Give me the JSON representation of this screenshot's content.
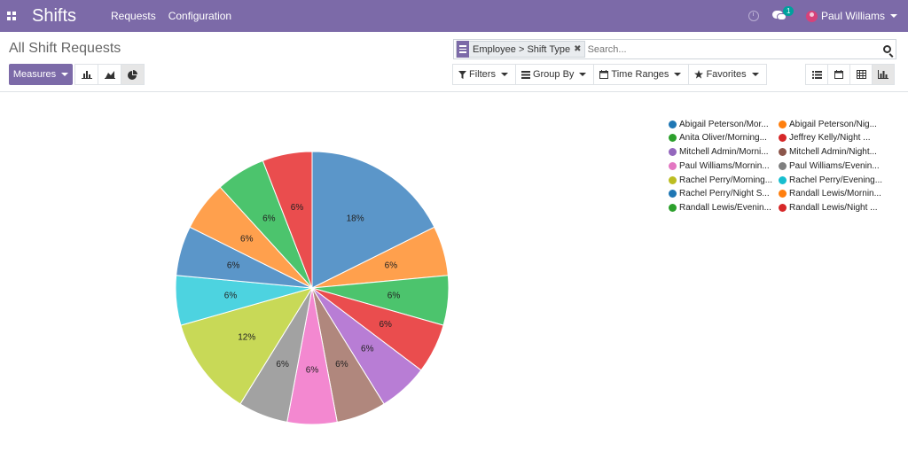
{
  "navbar": {
    "app_name": "Shifts",
    "menu": [
      "Requests",
      "Configuration"
    ],
    "chat_count": "1",
    "user_name": "Paul Williams",
    "brand_color": "#7c6aa8"
  },
  "control_panel": {
    "title": "All Shift Requests",
    "facet": "Employee > Shift Type",
    "search_placeholder": "Search...",
    "measures_label": "Measures",
    "filters": [
      "Filters",
      "Group By",
      "Time Ranges",
      "Favorites"
    ],
    "chart_type_icons": [
      "bar-chart-icon",
      "line-chart-icon",
      "pie-chart-icon"
    ],
    "active_chart_type": "pie",
    "view_icons": [
      "list-view-icon",
      "calendar-view-icon",
      "pivot-view-icon",
      "graph-view-icon"
    ],
    "active_view": "graph"
  },
  "chart_data": {
    "type": "pie",
    "start_angle_deg": 0,
    "direction": "clockwise",
    "slices": [
      {
        "label": "Abigail Peterson/Mor...",
        "value": 18,
        "display": "18%",
        "color": "#5b96c9",
        "legend_color": "#1f77b4"
      },
      {
        "label": "Abigail Peterson/Nig...",
        "value": 6,
        "display": "6%",
        "color": "#ffa04d",
        "legend_color": "#ff7f0e"
      },
      {
        "label": "Anita Oliver/Morning...",
        "value": 6,
        "display": "6%",
        "color": "#4cc46d",
        "legend_color": "#2ca02c"
      },
      {
        "label": "Jeffrey Kelly/Night ...",
        "value": 6,
        "display": "6%",
        "color": "#ea4d4e",
        "legend_color": "#d62728"
      },
      {
        "label": "Mitchell Admin/Morni...",
        "value": 6,
        "display": "6%",
        "color": "#b87dd5",
        "legend_color": "#9467bd"
      },
      {
        "label": "Mitchell Admin/Night...",
        "value": 6,
        "display": "6%",
        "color": "#b0877d",
        "legend_color": "#8c564b"
      },
      {
        "label": "Paul Williams/Mornin...",
        "value": 6,
        "display": "6%",
        "color": "#f388d0",
        "legend_color": "#e377c2"
      },
      {
        "label": "Paul Williams/Evenin...",
        "value": 6,
        "display": "6%",
        "color": "#a2a2a2",
        "legend_color": "#7f7f7f"
      },
      {
        "label": "Rachel Perry/Morning...",
        "value": 12,
        "display": "12%",
        "color": "#c8d957",
        "legend_color": "#bcbd22"
      },
      {
        "label": "Rachel Perry/Evening...",
        "value": 6,
        "display": "6%",
        "color": "#4dd3e0",
        "legend_color": "#17becf"
      },
      {
        "label": "Rachel Perry/Night S...",
        "value": 6,
        "display": "6%",
        "color": "#5b96c9",
        "legend_color": "#1f77b4"
      },
      {
        "label": "Randall Lewis/Mornin...",
        "value": 6,
        "display": "6%",
        "color": "#ffa04d",
        "legend_color": "#ff7f0e"
      },
      {
        "label": "Randall Lewis/Evenin...",
        "value": 6,
        "display": "6%",
        "color": "#4cc46d",
        "legend_color": "#2ca02c"
      },
      {
        "label": "Randall Lewis/Night ...",
        "value": 6,
        "display": "6%",
        "color": "#ea4d4e",
        "legend_color": "#d62728"
      }
    ],
    "legend_position": "top-right"
  }
}
